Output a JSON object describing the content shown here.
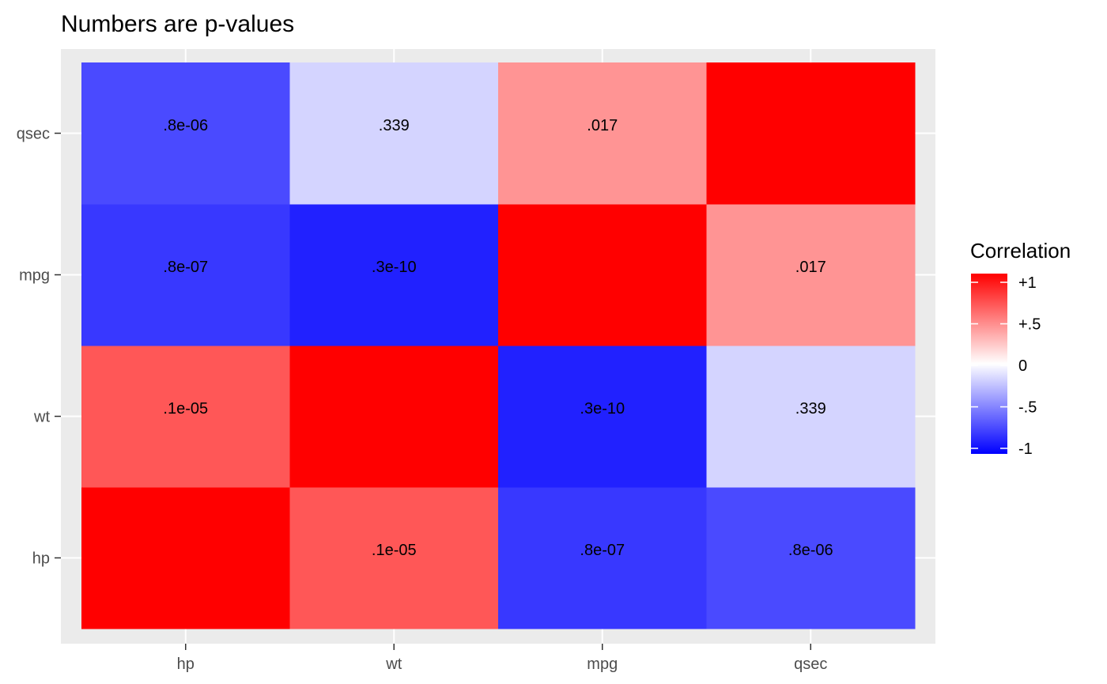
{
  "chart_data": {
    "type": "heatmap",
    "title": "Numbers are p-values",
    "x_categories": [
      "hp",
      "wt",
      "mpg",
      "qsec"
    ],
    "y_categories": [
      "hp",
      "wt",
      "mpg",
      "qsec"
    ],
    "cells": [
      {
        "x": "hp",
        "y": "hp",
        "value": 1.0,
        "label": ""
      },
      {
        "x": "wt",
        "y": "hp",
        "value": 0.66,
        "label": ".1e-05"
      },
      {
        "x": "mpg",
        "y": "hp",
        "value": -0.78,
        "label": ".8e-07"
      },
      {
        "x": "qsec",
        "y": "hp",
        "value": -0.71,
        "label": ".8e-06"
      },
      {
        "x": "hp",
        "y": "wt",
        "value": 0.66,
        "label": ".1e-05"
      },
      {
        "x": "wt",
        "y": "wt",
        "value": 1.0,
        "label": ""
      },
      {
        "x": "mpg",
        "y": "wt",
        "value": -0.87,
        "label": ".3e-10"
      },
      {
        "x": "qsec",
        "y": "wt",
        "value": -0.17,
        "label": ".339"
      },
      {
        "x": "hp",
        "y": "mpg",
        "value": -0.78,
        "label": ".8e-07"
      },
      {
        "x": "wt",
        "y": "mpg",
        "value": -0.87,
        "label": ".3e-10"
      },
      {
        "x": "mpg",
        "y": "mpg",
        "value": 1.0,
        "label": ""
      },
      {
        "x": "qsec",
        "y": "mpg",
        "value": 0.42,
        "label": ".017"
      },
      {
        "x": "hp",
        "y": "qsec",
        "value": -0.71,
        "label": ".8e-06"
      },
      {
        "x": "wt",
        "y": "qsec",
        "value": -0.17,
        "label": ".339"
      },
      {
        "x": "mpg",
        "y": "qsec",
        "value": 0.42,
        "label": ".017"
      },
      {
        "x": "qsec",
        "y": "qsec",
        "value": 1.0,
        "label": ""
      }
    ],
    "color_scale": {
      "low": "#0000ff",
      "mid": "#ffffff",
      "high": "#ff0000",
      "limits": [
        -1,
        1
      ]
    },
    "legend": {
      "title": "Correlation",
      "position": "right",
      "ticks": [
        {
          "value": 1,
          "label": "+1"
        },
        {
          "value": 0.5,
          "label": "+.5"
        },
        {
          "value": 0,
          "label": "0"
        },
        {
          "value": -0.5,
          "label": "-.5"
        },
        {
          "value": -1,
          "label": "-1"
        }
      ]
    },
    "panel_background": "#ebebeb",
    "grid_color": "#ffffff",
    "grid": true
  }
}
